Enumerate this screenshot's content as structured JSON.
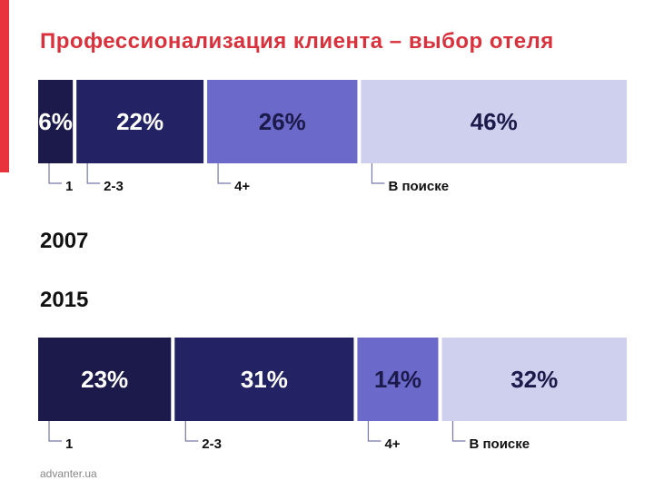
{
  "header": {
    "title": "Профессионализация клиента – выбор отеля"
  },
  "footer": {
    "site": "advanter.ua"
  },
  "colors": {
    "accent": "#e8323c",
    "title": "#d9323c",
    "seg1": "#1b1a4a",
    "seg2": "#232264",
    "seg3": "#6b6acb",
    "seg4": "#cfcfee"
  },
  "chart_data": [
    {
      "type": "bar",
      "orientation": "horizontal-stacked",
      "title": "2007",
      "categories": [
        "1",
        "2-3",
        "4+",
        "В поиске"
      ],
      "values": [
        6,
        22,
        26,
        46
      ],
      "labels": [
        "6%",
        "22%",
        "26%",
        "46%"
      ],
      "unit": "%"
    },
    {
      "type": "bar",
      "orientation": "horizontal-stacked",
      "title": "2015",
      "categories": [
        "1",
        "2-3",
        "4+",
        "В поиске"
      ],
      "values": [
        23,
        31,
        14,
        32
      ],
      "labels": [
        "23%",
        "31%",
        "14%",
        "32%"
      ],
      "unit": "%"
    }
  ]
}
